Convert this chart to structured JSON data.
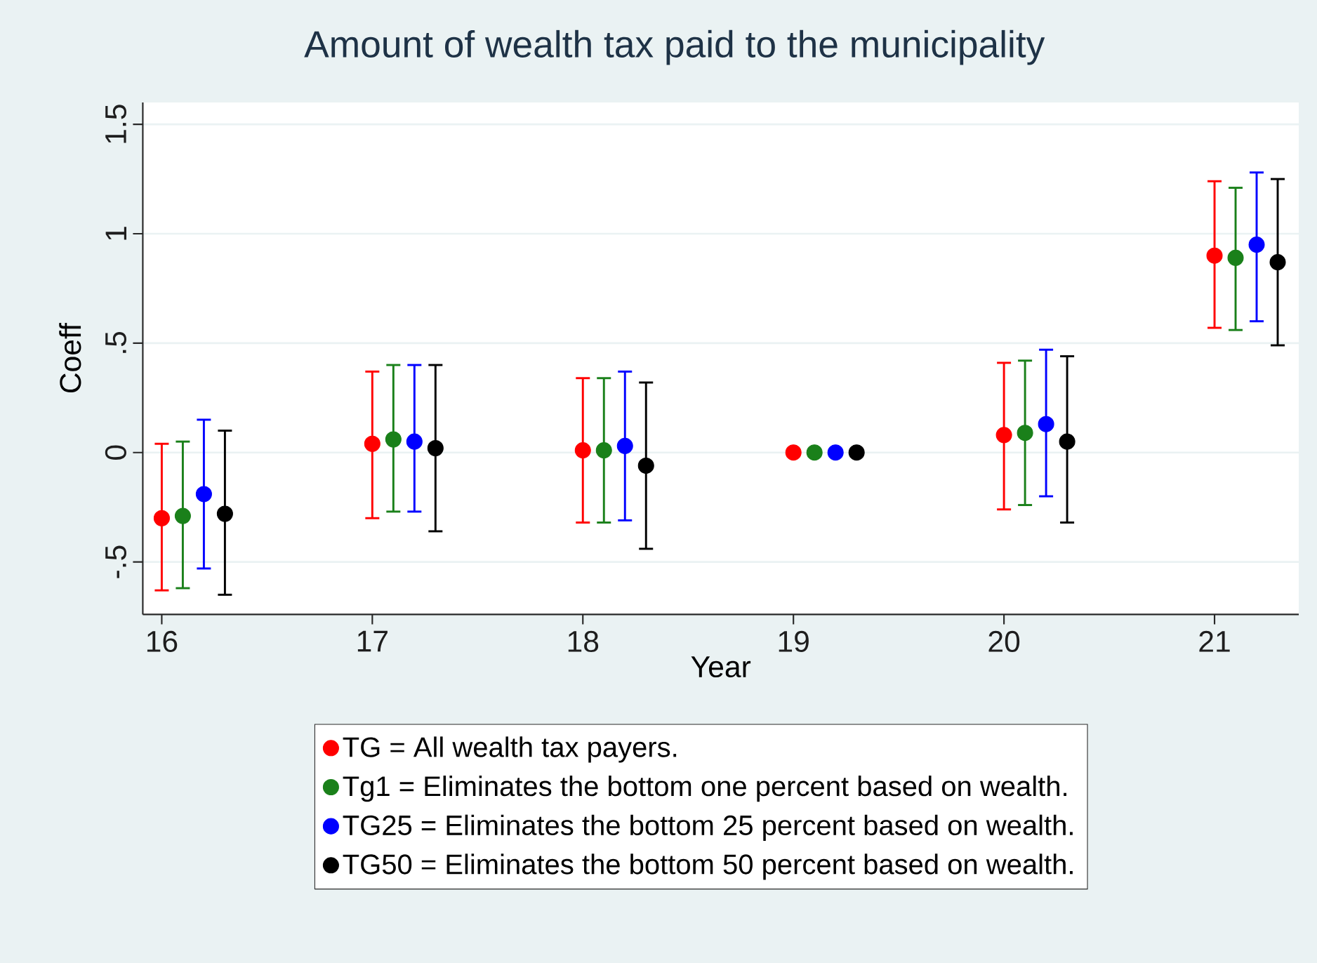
{
  "chart_data": {
    "type": "scatter",
    "title": "Amount of wealth tax paid to the municipality",
    "xlabel": "Year",
    "ylabel": "Coeff",
    "xlim": [
      15.91,
      21.4
    ],
    "xticks": [
      16,
      17,
      18,
      19,
      20,
      21
    ],
    "ylim": [
      -0.74,
      1.6
    ],
    "yticks": [
      {
        "value": -0.5,
        "label": "-.5"
      },
      0,
      {
        "value": 0.5,
        "label": ".5"
      },
      1,
      {
        "value": 1.5,
        "label": "1.5"
      }
    ],
    "grid": "y",
    "legend": "bottom",
    "marker": "circle",
    "series": [
      {
        "name": "TG = All wealth tax payers.",
        "color": "#ff0000",
        "x": [
          16,
          17,
          18,
          19,
          20,
          21
        ],
        "values": [
          -0.3,
          0.04,
          0.01,
          0,
          0.08,
          0.9
        ],
        "errors": [
          [
            -0.63,
            0.04
          ],
          [
            -0.3,
            0.37
          ],
          [
            -0.32,
            0.34
          ],
          null,
          [
            -0.26,
            0.41
          ],
          [
            0.57,
            1.24
          ]
        ]
      },
      {
        "name": "Tg1 = Eliminates the bottom one percent based on wealth.",
        "color": "#1a801a",
        "x": [
          16.1,
          17.1,
          18.1,
          19.1,
          20.1,
          21.1
        ],
        "values": [
          -0.29,
          0.06,
          0.01,
          0,
          0.09,
          0.89
        ],
        "errors": [
          [
            -0.62,
            0.05
          ],
          [
            -0.27,
            0.4
          ],
          [
            -0.32,
            0.34
          ],
          null,
          [
            -0.24,
            0.42
          ],
          [
            0.56,
            1.21
          ]
        ]
      },
      {
        "name": "TG25 = Eliminates the bottom 25 percent based on wealth.",
        "color": "#0000ff",
        "x": [
          16.2,
          17.2,
          18.2,
          19.2,
          20.2,
          21.2
        ],
        "values": [
          -0.19,
          0.05,
          0.03,
          0,
          0.13,
          0.95
        ],
        "errors": [
          [
            -0.53,
            0.15
          ],
          [
            -0.27,
            0.4
          ],
          [
            -0.31,
            0.37
          ],
          null,
          [
            -0.2,
            0.47
          ],
          [
            0.6,
            1.28
          ]
        ]
      },
      {
        "name": "TG50 = Eliminates the bottom 50 percent based on wealth.",
        "color": "#000000",
        "x": [
          16.3,
          17.3,
          18.3,
          19.3,
          20.3,
          21.3
        ],
        "values": [
          -0.28,
          0.02,
          -0.06,
          0,
          0.05,
          0.87
        ],
        "errors": [
          [
            -0.65,
            0.1
          ],
          [
            -0.36,
            0.4
          ],
          [
            -0.44,
            0.32
          ],
          null,
          [
            -0.32,
            0.44
          ],
          [
            0.49,
            1.25
          ]
        ]
      }
    ]
  }
}
